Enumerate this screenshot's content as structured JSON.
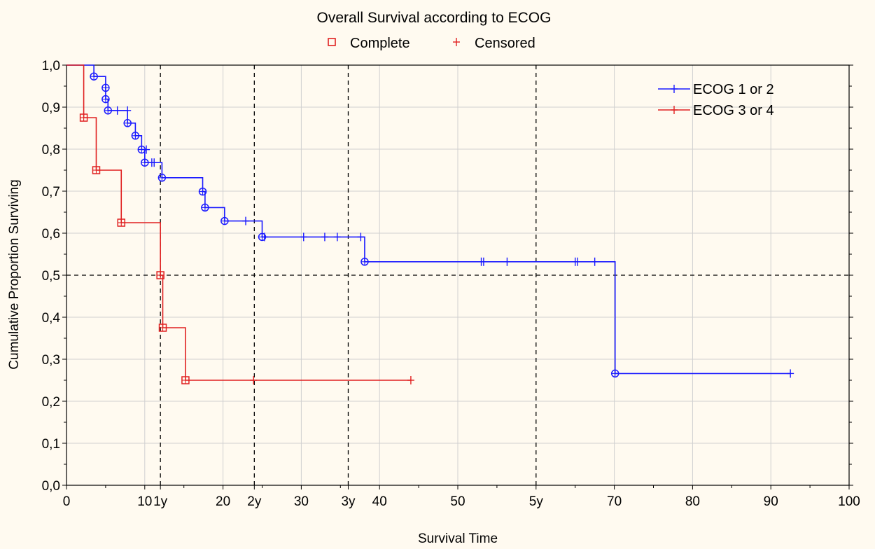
{
  "chart_data": {
    "type": "line",
    "title": "Overall Survival according to ECOG",
    "xlabel": "Survival Time",
    "ylabel": "Cumulative Proportion Surviving",
    "xlim": [
      0,
      100
    ],
    "ylim": [
      0,
      1
    ],
    "x_ticks": [
      {
        "value": 0,
        "label": "0"
      },
      {
        "value": 10,
        "label": "10"
      },
      {
        "value": 12,
        "label": "1y"
      },
      {
        "value": 20,
        "label": "20"
      },
      {
        "value": 24,
        "label": "2y"
      },
      {
        "value": 30,
        "label": "30"
      },
      {
        "value": 36,
        "label": "3y"
      },
      {
        "value": 40,
        "label": "40"
      },
      {
        "value": 50,
        "label": "50"
      },
      {
        "value": 60,
        "label": "5y"
      },
      {
        "value": 70,
        "label": "70"
      },
      {
        "value": 80,
        "label": "80"
      },
      {
        "value": 90,
        "label": "90"
      },
      {
        "value": 100,
        "label": "100"
      }
    ],
    "y_ticks": [
      {
        "value": 0.0,
        "label": "0,0"
      },
      {
        "value": 0.1,
        "label": "0,1"
      },
      {
        "value": 0.2,
        "label": "0,2"
      },
      {
        "value": 0.3,
        "label": "0,3"
      },
      {
        "value": 0.4,
        "label": "0,4"
      },
      {
        "value": 0.5,
        "label": "0,5"
      },
      {
        "value": 0.6,
        "label": "0,6"
      },
      {
        "value": 0.7,
        "label": "0,7"
      },
      {
        "value": 0.8,
        "label": "0,8"
      },
      {
        "value": 0.9,
        "label": "0,9"
      },
      {
        "value": 1.0,
        "label": "1,0"
      }
    ],
    "grid": true,
    "reference_lines": {
      "x": [
        12,
        24,
        36,
        60
      ],
      "y": [
        0.5
      ]
    },
    "marker_legend": {
      "position": "top",
      "items": [
        {
          "label": "Complete",
          "marker": "square",
          "color": "#e02020"
        },
        {
          "label": "Censored",
          "marker": "plus",
          "color": "#e02020"
        }
      ]
    },
    "series_legend_position": "top-right",
    "series": [
      {
        "name": "ECOG 1 or 2",
        "color": "#1a1aff",
        "event_marker": "circle",
        "steps": [
          [
            0,
            1.0
          ],
          [
            3.5,
            0.973
          ],
          [
            5.0,
            0.946
          ],
          [
            5.0,
            0.919
          ],
          [
            5.3,
            0.892
          ],
          [
            7.8,
            0.862
          ],
          [
            8.8,
            0.832
          ],
          [
            9.6,
            0.799
          ],
          [
            10.0,
            0.768
          ],
          [
            12.2,
            0.732
          ],
          [
            17.4,
            0.699
          ],
          [
            17.7,
            0.661
          ],
          [
            20.2,
            0.629
          ],
          [
            25.0,
            0.591
          ],
          [
            38.1,
            0.532
          ],
          [
            70.1,
            0.266
          ],
          [
            92.5,
            0.266
          ]
        ],
        "events": [
          [
            3.5,
            0.973
          ],
          [
            5.0,
            0.946
          ],
          [
            5.0,
            0.919
          ],
          [
            5.3,
            0.892
          ],
          [
            7.8,
            0.862
          ],
          [
            8.8,
            0.832
          ],
          [
            9.6,
            0.799
          ],
          [
            10.0,
            0.768
          ],
          [
            12.2,
            0.732
          ],
          [
            17.4,
            0.699
          ],
          [
            17.7,
            0.661
          ],
          [
            20.2,
            0.629
          ],
          [
            25.0,
            0.591
          ],
          [
            38.1,
            0.532
          ],
          [
            70.1,
            0.266
          ]
        ],
        "censored": [
          [
            6.5,
            0.892
          ],
          [
            7.8,
            0.892
          ],
          [
            10.2,
            0.799
          ],
          [
            10.9,
            0.768
          ],
          [
            11.2,
            0.768
          ],
          [
            22.9,
            0.629
          ],
          [
            25.3,
            0.591
          ],
          [
            30.3,
            0.591
          ],
          [
            33.0,
            0.591
          ],
          [
            34.6,
            0.591
          ],
          [
            37.6,
            0.591
          ],
          [
            53.0,
            0.532
          ],
          [
            53.3,
            0.532
          ],
          [
            56.3,
            0.532
          ],
          [
            65.0,
            0.532
          ],
          [
            65.3,
            0.532
          ],
          [
            67.5,
            0.532
          ],
          [
            92.5,
            0.266
          ]
        ]
      },
      {
        "name": "ECOG 3 or 4",
        "color": "#e02020",
        "event_marker": "square",
        "steps": [
          [
            0,
            1.0
          ],
          [
            2.2,
            0.875
          ],
          [
            3.8,
            0.75
          ],
          [
            7.0,
            0.625
          ],
          [
            12.0,
            0.5
          ],
          [
            12.3,
            0.375
          ],
          [
            15.2,
            0.25
          ],
          [
            44.0,
            0.25
          ]
        ],
        "events": [
          [
            2.2,
            0.875
          ],
          [
            3.8,
            0.75
          ],
          [
            7.0,
            0.625
          ],
          [
            12.0,
            0.5
          ],
          [
            12.3,
            0.375
          ],
          [
            15.2,
            0.25
          ]
        ],
        "censored": [
          [
            23.9,
            0.25
          ],
          [
            44.0,
            0.25
          ]
        ]
      }
    ]
  }
}
